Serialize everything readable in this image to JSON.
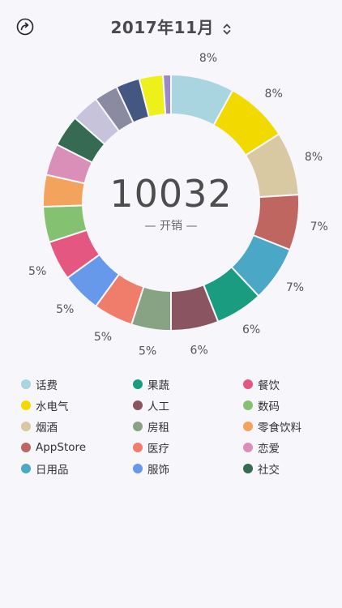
{
  "header": {
    "title": "2017年11月"
  },
  "center": {
    "total": "10032",
    "caption": "— 开销 —"
  },
  "chart_data": {
    "type": "pie",
    "total": 10032,
    "slices": [
      {
        "name": "话费",
        "value": 8,
        "label": "8%",
        "color": "#a8d5e0"
      },
      {
        "name": "水电气",
        "value": 8,
        "label": "8%",
        "color": "#f2d900"
      },
      {
        "name": "烟酒",
        "value": 8,
        "label": "8%",
        "color": "#d8c9a3"
      },
      {
        "name": "AppStore",
        "value": 7,
        "label": "7%",
        "color": "#c06661"
      },
      {
        "name": "日用品",
        "value": 7,
        "label": "7%",
        "color": "#4aa7c6"
      },
      {
        "name": "果蔬",
        "value": 6,
        "label": "6%",
        "color": "#1a9c80"
      },
      {
        "name": "人工",
        "value": 6,
        "label": "6%",
        "color": "#8a5561"
      },
      {
        "name": "房租",
        "value": 5,
        "label": "5%",
        "color": "#88a383"
      },
      {
        "name": "医疗",
        "value": 5,
        "label": "5%",
        "color": "#f07d6b"
      },
      {
        "name": "服饰",
        "value": 5,
        "label": "5%",
        "color": "#6699ea"
      },
      {
        "name": "餐饮",
        "value": 5,
        "label": "5%",
        "color": "#e45781"
      },
      {
        "name": "数码",
        "value": 4.5,
        "label": "",
        "color": "#84c171"
      },
      {
        "name": "零食饮料",
        "value": 4,
        "label": "",
        "color": "#f3a35c"
      },
      {
        "name": "恋爱",
        "value": 4,
        "label": "",
        "color": "#d98fb8"
      },
      {
        "name": "社交",
        "value": 4,
        "label": "",
        "color": "#366a52"
      },
      {
        "name": "",
        "value": 3.5,
        "label": "",
        "color": "#c6c3da"
      },
      {
        "name": "",
        "value": 3,
        "label": "",
        "color": "#8a8ba1"
      },
      {
        "name": "",
        "value": 3,
        "label": "",
        "color": "#445782"
      },
      {
        "name": "",
        "value": 3,
        "label": "",
        "color": "#eef01c"
      },
      {
        "name": "",
        "value": 1,
        "label": "",
        "color": "#9b89c3"
      }
    ]
  },
  "legend": {
    "items": [
      {
        "label": "话费",
        "color": "#a8d5e0"
      },
      {
        "label": "果蔬",
        "color": "#1a9c80"
      },
      {
        "label": "餐饮",
        "color": "#e45781"
      },
      {
        "label": "水电气",
        "color": "#f2d900"
      },
      {
        "label": "人工",
        "color": "#8a5561"
      },
      {
        "label": "数码",
        "color": "#84c171"
      },
      {
        "label": "烟酒",
        "color": "#d8c9a3"
      },
      {
        "label": "房租",
        "color": "#88a383"
      },
      {
        "label": "零食饮料",
        "color": "#f3a35c"
      },
      {
        "label": "AppStore",
        "color": "#c06661"
      },
      {
        "label": "医疗",
        "color": "#f07d6b"
      },
      {
        "label": "恋爱",
        "color": "#d98fb8"
      },
      {
        "label": "日用品",
        "color": "#4aa7c6"
      },
      {
        "label": "服饰",
        "color": "#6699ea"
      },
      {
        "label": "社交",
        "color": "#366a52"
      }
    ]
  },
  "icons": {
    "share": "share-icon",
    "month_switch": "chevron-up-down-icon"
  }
}
